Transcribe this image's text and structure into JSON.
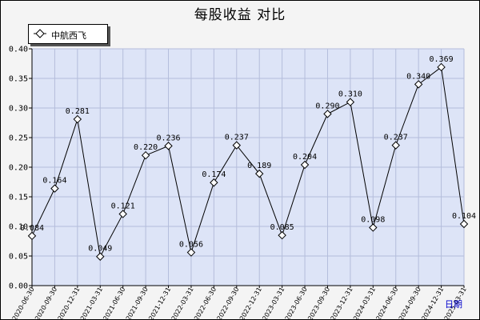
{
  "chart_data": {
    "type": "line",
    "title": "每股收益 对比",
    "xlabel": "日期",
    "ylabel": "",
    "ylim": [
      0,
      0.4
    ],
    "yticks": [
      "0.00",
      "0.05",
      "0.10",
      "0.15",
      "0.20",
      "0.25",
      "0.30",
      "0.35",
      "0.40"
    ],
    "grid": true,
    "legend_position": "top-left",
    "categories": [
      "2020-06-30",
      "2020-09-30",
      "2020-12-31",
      "2021-03-31",
      "2021-06-30",
      "2021-09-30",
      "2021-12-31",
      "2022-03-31",
      "2022-06-30",
      "2022-09-30",
      "2022-12-31",
      "2023-03-31",
      "2023-06-30",
      "2023-09-30",
      "2023-12-31",
      "2024-03-31",
      "2024-06-30",
      "2024-09-30",
      "2024-12-31",
      "2025-03-31"
    ],
    "series": [
      {
        "name": "中航西飞",
        "values": [
          0.084,
          0.164,
          0.281,
          0.049,
          0.121,
          0.22,
          0.236,
          0.056,
          0.174,
          0.237,
          0.189,
          0.085,
          0.204,
          0.29,
          0.31,
          0.098,
          0.237,
          0.34,
          0.369,
          0.104
        ],
        "labels": [
          "0.084",
          "0.164",
          "0.281",
          "0.049",
          "0.121",
          "0.220",
          "0.236",
          "0.056",
          "0.174",
          "0.237",
          "0.189",
          "0.085",
          "0.204",
          "0.290",
          "0.310",
          "0.098",
          "0.237",
          "0.340",
          "0.369",
          "0.104"
        ],
        "color": "#000000"
      }
    ],
    "colors": {
      "plot_background": "#dde4f7",
      "grid": "#b4bddb",
      "line": "#000000"
    }
  }
}
